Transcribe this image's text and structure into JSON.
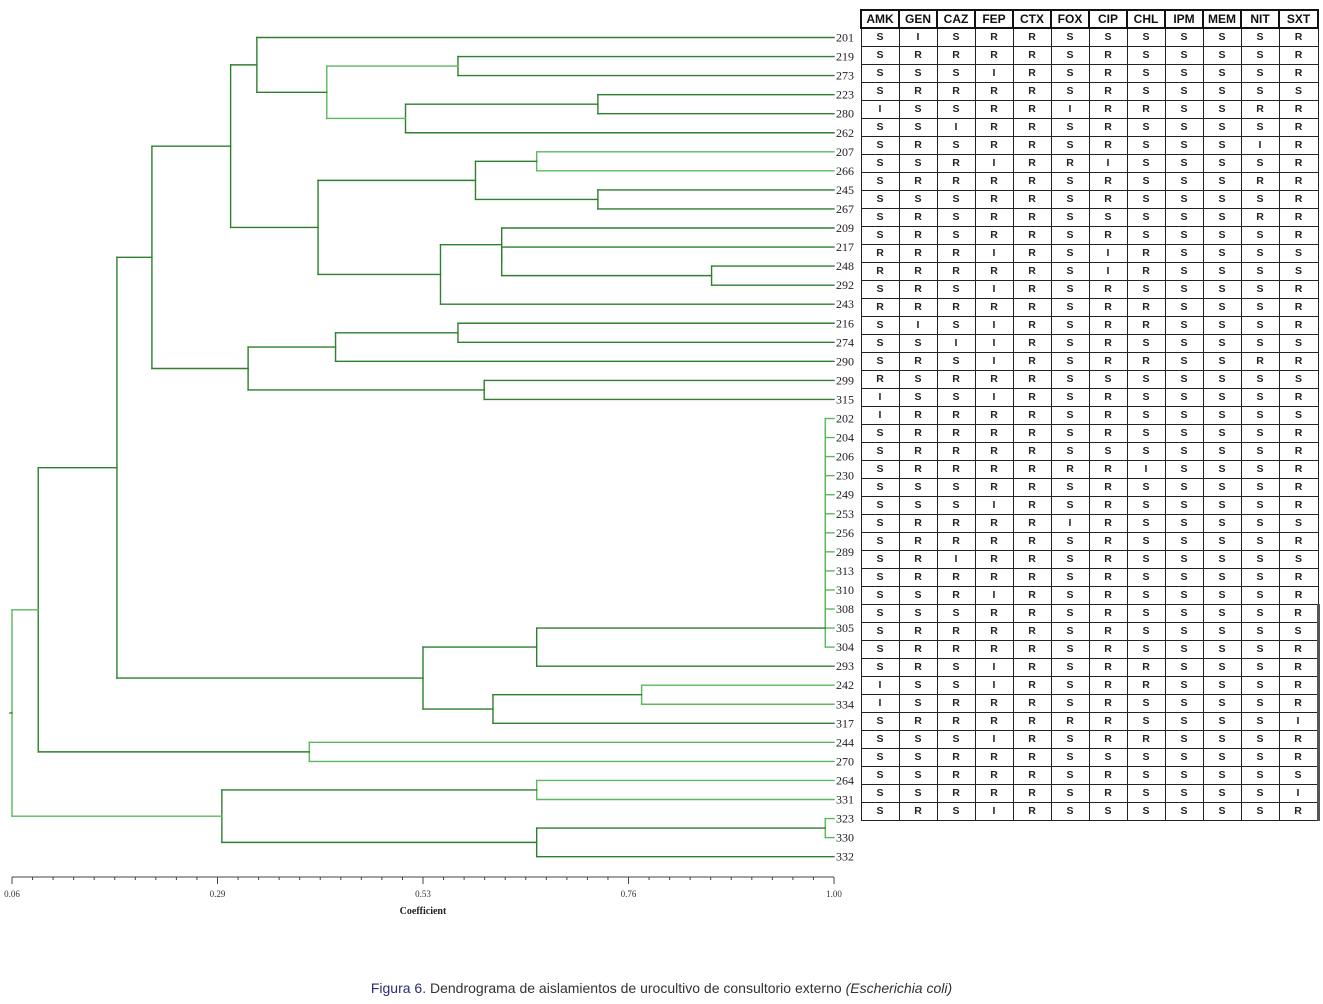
{
  "caption": {
    "figure_label": "Figura 6.",
    "text": "Dendrograma de aislamientos de urocultivo de consultorio externo",
    "species": "(Escherichia coli)"
  },
  "axis": {
    "title": "Coefficient",
    "ticks": [
      "0.06",
      "0.29",
      "0.53",
      "0.76",
      "1.00"
    ]
  },
  "table": {
    "columns": [
      "AMK",
      "GEN",
      "CAZ",
      "FEP",
      "CTX",
      "FOX",
      "CIP",
      "CHL",
      "IPM",
      "MEM",
      "NIT",
      "SXT"
    ]
  },
  "isolates": [
    {
      "id": "201",
      "r": [
        "S",
        "I",
        "S",
        "R",
        "R",
        "S",
        "S",
        "S",
        "S",
        "S",
        "S",
        "R"
      ]
    },
    {
      "id": "219",
      "r": [
        "S",
        "R",
        "R",
        "R",
        "R",
        "S",
        "R",
        "S",
        "S",
        "S",
        "S",
        "R"
      ]
    },
    {
      "id": "273",
      "r": [
        "S",
        "S",
        "S",
        "I",
        "R",
        "S",
        "R",
        "S",
        "S",
        "S",
        "S",
        "R"
      ]
    },
    {
      "id": "223",
      "r": [
        "S",
        "R",
        "R",
        "R",
        "R",
        "S",
        "R",
        "S",
        "S",
        "S",
        "S",
        "S"
      ]
    },
    {
      "id": "280",
      "r": [
        "I",
        "S",
        "S",
        "R",
        "R",
        "I",
        "R",
        "R",
        "S",
        "S",
        "R",
        "R"
      ]
    },
    {
      "id": "262",
      "r": [
        "S",
        "S",
        "I",
        "R",
        "R",
        "S",
        "R",
        "S",
        "S",
        "S",
        "S",
        "R"
      ]
    },
    {
      "id": "207",
      "r": [
        "S",
        "R",
        "S",
        "R",
        "R",
        "S",
        "R",
        "S",
        "S",
        "S",
        "I",
        "R"
      ]
    },
    {
      "id": "266",
      "r": [
        "S",
        "S",
        "R",
        "I",
        "R",
        "R",
        "I",
        "S",
        "S",
        "S",
        "S",
        "R"
      ]
    },
    {
      "id": "245",
      "r": [
        "S",
        "R",
        "R",
        "R",
        "R",
        "S",
        "R",
        "S",
        "S",
        "S",
        "R",
        "R"
      ]
    },
    {
      "id": "267",
      "r": [
        "S",
        "S",
        "S",
        "R",
        "R",
        "S",
        "R",
        "S",
        "S",
        "S",
        "S",
        "R"
      ]
    },
    {
      "id": "209",
      "r": [
        "S",
        "R",
        "S",
        "R",
        "R",
        "S",
        "S",
        "S",
        "S",
        "S",
        "R",
        "R"
      ]
    },
    {
      "id": "217",
      "r": [
        "S",
        "R",
        "S",
        "R",
        "R",
        "S",
        "R",
        "S",
        "S",
        "S",
        "S",
        "R"
      ]
    },
    {
      "id": "248",
      "r": [
        "R",
        "R",
        "R",
        "I",
        "R",
        "S",
        "I",
        "R",
        "S",
        "S",
        "S",
        "S"
      ]
    },
    {
      "id": "292",
      "r": [
        "R",
        "R",
        "R",
        "R",
        "R",
        "S",
        "I",
        "R",
        "S",
        "S",
        "S",
        "S"
      ]
    },
    {
      "id": "243",
      "r": [
        "S",
        "R",
        "S",
        "I",
        "R",
        "S",
        "R",
        "S",
        "S",
        "S",
        "S",
        "R"
      ]
    },
    {
      "id": "216",
      "r": [
        "R",
        "R",
        "R",
        "R",
        "R",
        "S",
        "R",
        "R",
        "S",
        "S",
        "S",
        "R"
      ]
    },
    {
      "id": "274",
      "r": [
        "S",
        "I",
        "S",
        "I",
        "R",
        "S",
        "R",
        "R",
        "S",
        "S",
        "S",
        "R"
      ]
    },
    {
      "id": "290",
      "r": [
        "S",
        "S",
        "I",
        "I",
        "R",
        "S",
        "R",
        "S",
        "S",
        "S",
        "S",
        "S"
      ]
    },
    {
      "id": "299",
      "r": [
        "S",
        "R",
        "S",
        "I",
        "R",
        "S",
        "R",
        "R",
        "S",
        "S",
        "R",
        "R"
      ]
    },
    {
      "id": "315",
      "r": [
        "R",
        "S",
        "R",
        "R",
        "R",
        "S",
        "S",
        "S",
        "S",
        "S",
        "S",
        "S"
      ]
    },
    {
      "id": "202",
      "r": [
        "I",
        "S",
        "S",
        "I",
        "R",
        "S",
        "R",
        "S",
        "S",
        "S",
        "S",
        "R"
      ]
    },
    {
      "id": "204",
      "r": [
        "I",
        "R",
        "R",
        "R",
        "R",
        "S",
        "R",
        "S",
        "S",
        "S",
        "S",
        "S"
      ]
    },
    {
      "id": "206",
      "r": [
        "S",
        "R",
        "R",
        "R",
        "R",
        "S",
        "R",
        "S",
        "S",
        "S",
        "S",
        "R"
      ]
    },
    {
      "id": "230",
      "r": [
        "S",
        "R",
        "R",
        "R",
        "R",
        "S",
        "S",
        "S",
        "S",
        "S",
        "S",
        "R"
      ]
    },
    {
      "id": "249",
      "r": [
        "S",
        "R",
        "R",
        "R",
        "R",
        "R",
        "R",
        "I",
        "S",
        "S",
        "S",
        "R"
      ]
    },
    {
      "id": "253",
      "r": [
        "S",
        "S",
        "S",
        "R",
        "R",
        "S",
        "R",
        "S",
        "S",
        "S",
        "S",
        "R"
      ]
    },
    {
      "id": "256",
      "r": [
        "S",
        "S",
        "S",
        "I",
        "R",
        "S",
        "R",
        "S",
        "S",
        "S",
        "S",
        "R"
      ]
    },
    {
      "id": "289",
      "r": [
        "S",
        "R",
        "R",
        "R",
        "R",
        "I",
        "R",
        "S",
        "S",
        "S",
        "S",
        "S"
      ]
    },
    {
      "id": "313",
      "r": [
        "S",
        "R",
        "R",
        "R",
        "R",
        "S",
        "R",
        "S",
        "S",
        "S",
        "S",
        "R"
      ]
    },
    {
      "id": "310",
      "r": [
        "S",
        "R",
        "I",
        "R",
        "R",
        "S",
        "R",
        "S",
        "S",
        "S",
        "S",
        "S"
      ]
    },
    {
      "id": "308",
      "r": [
        "S",
        "R",
        "R",
        "R",
        "R",
        "S",
        "R",
        "S",
        "S",
        "S",
        "S",
        "R"
      ]
    },
    {
      "id": "305",
      "r": [
        "S",
        "S",
        "R",
        "I",
        "R",
        "S",
        "R",
        "S",
        "S",
        "S",
        "S",
        "R"
      ]
    },
    {
      "id": "304",
      "r": [
        "S",
        "S",
        "S",
        "R",
        "R",
        "S",
        "R",
        "S",
        "S",
        "S",
        "S",
        "R"
      ]
    },
    {
      "id": "293",
      "r": [
        "S",
        "R",
        "R",
        "R",
        "R",
        "S",
        "R",
        "S",
        "S",
        "S",
        "S",
        "S"
      ]
    },
    {
      "id": "242",
      "r": [
        "S",
        "R",
        "R",
        "R",
        "R",
        "S",
        "R",
        "S",
        "S",
        "S",
        "S",
        "R"
      ]
    },
    {
      "id": "334",
      "r": [
        "S",
        "R",
        "S",
        "I",
        "R",
        "S",
        "R",
        "R",
        "S",
        "S",
        "S",
        "R"
      ]
    },
    {
      "id": "317",
      "r": [
        "I",
        "S",
        "S",
        "I",
        "R",
        "S",
        "R",
        "R",
        "S",
        "S",
        "S",
        "R"
      ]
    },
    {
      "id": "244",
      "r": [
        "I",
        "S",
        "R",
        "R",
        "R",
        "S",
        "R",
        "S",
        "S",
        "S",
        "S",
        "R"
      ]
    },
    {
      "id": "270",
      "r": [
        "S",
        "R",
        "R",
        "R",
        "R",
        "R",
        "R",
        "S",
        "S",
        "S",
        "S",
        "I"
      ]
    },
    {
      "id": "264",
      "r": [
        "S",
        "S",
        "S",
        "I",
        "R",
        "S",
        "R",
        "R",
        "S",
        "S",
        "S",
        "R"
      ]
    },
    {
      "id": "331",
      "r": [
        "S",
        "S",
        "R",
        "R",
        "R",
        "S",
        "S",
        "S",
        "S",
        "S",
        "S",
        "R"
      ]
    },
    {
      "id": "323",
      "r": [
        "S",
        "S",
        "R",
        "R",
        "R",
        "S",
        "R",
        "S",
        "S",
        "S",
        "S",
        "S"
      ]
    },
    {
      "id": "330",
      "r": [
        "S",
        "S",
        "R",
        "R",
        "R",
        "S",
        "R",
        "S",
        "S",
        "S",
        "S",
        "I"
      ]
    },
    {
      "id": "332",
      "r": [
        "S",
        "R",
        "S",
        "I",
        "R",
        "S",
        "S",
        "S",
        "S",
        "S",
        "S",
        "R"
      ]
    }
  ],
  "dendrogram": {
    "axis_range": [
      0.06,
      1.0
    ],
    "colors": {
      "dark": "#2f7f2f",
      "light": "#5cb85c"
    },
    "merges": [
      {
        "id": "a1",
        "a": "219",
        "b": "273",
        "h": 0.57,
        "c": "dark"
      },
      {
        "id": "a2",
        "a": "223",
        "b": "280",
        "h": 0.73,
        "c": "dark"
      },
      {
        "id": "a3",
        "a": "a2",
        "b": "262",
        "h": 0.51,
        "c": "dark"
      },
      {
        "id": "a4",
        "a": "a1",
        "b": "a3",
        "h": 0.42,
        "c": "light"
      },
      {
        "id": "a5",
        "a": "201",
        "b": "a4",
        "h": 0.34,
        "c": "dark"
      },
      {
        "id": "b1",
        "a": "207",
        "b": "266",
        "h": 0.66,
        "c": "light"
      },
      {
        "id": "b2",
        "a": "245",
        "b": "267",
        "h": 0.73,
        "c": "dark"
      },
      {
        "id": "b3",
        "a": "b1",
        "b": "b2",
        "h": 0.59,
        "c": "dark"
      },
      {
        "id": "b4",
        "a": "248",
        "b": "292",
        "h": 0.86,
        "c": "dark"
      },
      {
        "id": "b5",
        "a": "217",
        "b": "b4",
        "h": 0.62,
        "c": "dark"
      },
      {
        "id": "b6",
        "a": "209",
        "b": "b5",
        "h": 0.62,
        "c": "dark"
      },
      {
        "id": "b7",
        "a": "b6",
        "b": "243",
        "h": 0.55,
        "c": "dark"
      },
      {
        "id": "b8",
        "a": "b3",
        "b": "b7",
        "h": 0.41,
        "c": "dark"
      },
      {
        "id": "c1",
        "a": "a5",
        "b": "b8",
        "h": 0.31,
        "c": "dark"
      },
      {
        "id": "d1",
        "a": "216",
        "b": "274",
        "h": 0.57,
        "c": "dark"
      },
      {
        "id": "d2",
        "a": "d1",
        "b": "290",
        "h": 0.43,
        "c": "dark"
      },
      {
        "id": "d3",
        "a": "299",
        "b": "315",
        "h": 0.6,
        "c": "dark"
      },
      {
        "id": "d4",
        "a": "d2",
        "b": "d3",
        "h": 0.33,
        "c": "dark"
      },
      {
        "id": "c2",
        "a": "c1",
        "b": "d4",
        "h": 0.22,
        "c": "dark"
      },
      {
        "id": "e0",
        "a": "202",
        "b": "204",
        "h": 0.99,
        "c": "light"
      },
      {
        "id": "e1",
        "a": "e0",
        "b": "206",
        "h": 0.99,
        "c": "light"
      },
      {
        "id": "e2",
        "a": "e1",
        "b": "230",
        "h": 0.99,
        "c": "light"
      },
      {
        "id": "e3",
        "a": "e2",
        "b": "249",
        "h": 0.99,
        "c": "light"
      },
      {
        "id": "e4",
        "a": "e3",
        "b": "253",
        "h": 0.99,
        "c": "light"
      },
      {
        "id": "e5",
        "a": "e4",
        "b": "256",
        "h": 0.99,
        "c": "light"
      },
      {
        "id": "e6",
        "a": "e5",
        "b": "289",
        "h": 0.99,
        "c": "light"
      },
      {
        "id": "e7",
        "a": "e6",
        "b": "313",
        "h": 0.99,
        "c": "light"
      },
      {
        "id": "e8",
        "a": "e7",
        "b": "310",
        "h": 0.99,
        "c": "light"
      },
      {
        "id": "e9",
        "a": "e8",
        "b": "308",
        "h": 0.99,
        "c": "light"
      },
      {
        "id": "e10",
        "a": "e9",
        "b": "305",
        "h": 0.99,
        "c": "light"
      },
      {
        "id": "e11",
        "a": "e10",
        "b": "304",
        "h": 0.99,
        "c": "light"
      },
      {
        "id": "f1",
        "a": "e11",
        "b": "293",
        "h": 0.66,
        "c": "dark"
      },
      {
        "id": "f2",
        "a": "242",
        "b": "334",
        "h": 0.78,
        "c": "light"
      },
      {
        "id": "f3",
        "a": "f2",
        "b": "317",
        "h": 0.61,
        "c": "dark"
      },
      {
        "id": "f4",
        "a": "f1",
        "b": "f3",
        "h": 0.53,
        "c": "dark"
      },
      {
        "id": "g1",
        "a": "c2",
        "b": "f4",
        "h": 0.18,
        "c": "dark"
      },
      {
        "id": "h1",
        "a": "244",
        "b": "270",
        "h": 0.4,
        "c": "light"
      },
      {
        "id": "g2",
        "a": "g1",
        "b": "h1",
        "h": 0.09,
        "c": "dark"
      },
      {
        "id": "i1",
        "a": "264",
        "b": "331",
        "h": 0.66,
        "c": "light"
      },
      {
        "id": "i2",
        "a": "323",
        "b": "330",
        "h": 0.99,
        "c": "light"
      },
      {
        "id": "i3",
        "a": "i2",
        "b": "332",
        "h": 0.66,
        "c": "dark"
      },
      {
        "id": "i4",
        "a": "i1",
        "b": "i3",
        "h": 0.3,
        "c": "dark"
      },
      {
        "id": "root",
        "a": "g2",
        "b": "i4",
        "h": 0.06,
        "c": "light"
      }
    ]
  }
}
